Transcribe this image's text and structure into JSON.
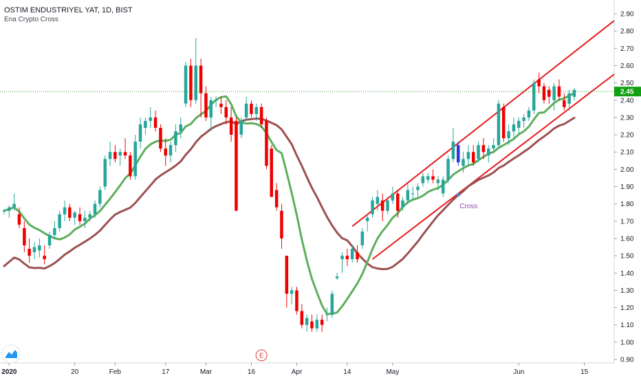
{
  "header": {
    "symbol_line": "OSTIM ENDUSTRIYEL YAT, 1D, BIST",
    "indicator_name": "Ena Crypto Cross"
  },
  "chart_data": {
    "type": "candlestick",
    "title": "OSTIM ENDUSTRIYEL YAT, 1D, BIST",
    "ylim": [
      0.9,
      2.9
    ],
    "y_ticks": [
      "0.90",
      "1.00",
      "1.10",
      "1.20",
      "1.30",
      "1.40",
      "1.50",
      "1.60",
      "1.70",
      "1.80",
      "1.90",
      "2.00",
      "2.10",
      "2.20",
      "2.30",
      "2.40",
      "2.50",
      "2.60",
      "2.70",
      "2.80",
      "2.90"
    ],
    "x_ticks": [
      "2020",
      "20",
      "Feb",
      "17",
      "Mar",
      "16",
      "Apr",
      "14",
      "May",
      "Jun",
      "15"
    ],
    "last_price": "2.45",
    "colors": {
      "up": "#26a69a",
      "down": "#ef0000",
      "fast_ma": "#5cae5c",
      "slow_ma": "#9c5050",
      "channel": "#e8191c",
      "price_line": "#2e9a2e",
      "price_tag": "#12a012",
      "signal_up": "#2196f3",
      "signal_bar": "#3333dd",
      "cross_label": "#8e44ad",
      "event_marker": "#e04040"
    },
    "candles": [
      [
        1.76,
        1.77,
        1.74,
        1.76
      ],
      [
        1.76,
        1.79,
        1.72,
        1.78
      ],
      [
        1.78,
        1.86,
        1.76,
        1.8
      ],
      [
        1.74,
        1.78,
        1.66,
        1.68
      ],
      [
        1.66,
        1.7,
        1.52,
        1.56
      ],
      [
        1.54,
        1.6,
        1.46,
        1.5
      ],
      [
        1.52,
        1.58,
        1.48,
        1.55
      ],
      [
        1.53,
        1.6,
        1.49,
        1.56
      ],
      [
        1.5,
        1.56,
        1.45,
        1.48
      ],
      [
        1.56,
        1.64,
        1.54,
        1.62
      ],
      [
        1.62,
        1.7,
        1.6,
        1.66
      ],
      [
        1.66,
        1.76,
        1.64,
        1.74
      ],
      [
        1.74,
        1.82,
        1.7,
        1.78
      ],
      [
        1.78,
        1.8,
        1.7,
        1.72
      ],
      [
        1.72,
        1.76,
        1.68,
        1.75
      ],
      [
        1.74,
        1.78,
        1.68,
        1.7
      ],
      [
        1.7,
        1.76,
        1.66,
        1.72
      ],
      [
        1.72,
        1.76,
        1.7,
        1.74
      ],
      [
        1.74,
        1.82,
        1.72,
        1.8
      ],
      [
        1.8,
        1.9,
        1.78,
        1.88
      ],
      [
        1.9,
        2.08,
        1.88,
        2.06
      ],
      [
        2.06,
        2.16,
        2.02,
        2.1
      ],
      [
        2.1,
        2.14,
        2.04,
        2.06
      ],
      [
        2.08,
        2.12,
        2.02,
        2.1
      ],
      [
        2.1,
        2.18,
        2.06,
        2.08
      ],
      [
        2.08,
        2.1,
        1.94,
        1.96
      ],
      [
        1.96,
        2.2,
        1.94,
        2.16
      ],
      [
        2.16,
        2.3,
        2.12,
        2.26
      ],
      [
        2.24,
        2.3,
        2.2,
        2.28
      ],
      [
        2.28,
        2.36,
        2.24,
        2.3
      ],
      [
        2.3,
        2.34,
        2.22,
        2.24
      ],
      [
        2.24,
        2.26,
        2.1,
        2.12
      ],
      [
        2.12,
        2.18,
        2.02,
        2.08
      ],
      [
        2.08,
        2.16,
        2.04,
        2.14
      ],
      [
        2.14,
        2.26,
        2.1,
        2.22
      ],
      [
        2.22,
        2.3,
        2.18,
        2.26
      ],
      [
        2.38,
        2.62,
        2.36,
        2.6
      ],
      [
        2.6,
        2.64,
        2.36,
        2.4
      ],
      [
        2.4,
        2.76,
        2.38,
        2.6
      ],
      [
        2.6,
        2.64,
        2.3,
        2.44
      ],
      [
        2.44,
        2.48,
        2.28,
        2.3
      ],
      [
        2.3,
        2.42,
        2.22,
        2.4
      ],
      [
        2.4,
        2.42,
        2.36,
        2.4
      ],
      [
        2.38,
        2.42,
        2.32,
        2.36
      ],
      [
        2.36,
        2.4,
        2.26,
        2.3
      ],
      [
        2.3,
        2.36,
        2.16,
        2.2
      ],
      [
        2.28,
        2.3,
        1.76,
        1.76
      ],
      [
        2.2,
        2.3,
        2.18,
        2.28
      ],
      [
        2.3,
        2.42,
        2.28,
        2.38
      ],
      [
        2.38,
        2.4,
        2.3,
        2.32
      ],
      [
        2.32,
        2.38,
        2.28,
        2.36
      ],
      [
        2.36,
        2.38,
        2.24,
        2.26
      ],
      [
        2.28,
        2.3,
        2.0,
        2.02
      ],
      [
        2.12,
        2.14,
        1.84,
        1.84
      ],
      [
        1.88,
        1.92,
        1.76,
        1.78
      ],
      [
        1.76,
        1.8,
        1.54,
        1.6
      ],
      [
        1.5,
        1.5,
        1.2,
        1.28
      ],
      [
        1.28,
        1.32,
        1.22,
        1.3
      ],
      [
        1.3,
        1.32,
        1.16,
        1.18
      ],
      [
        1.18,
        1.22,
        1.08,
        1.1
      ],
      [
        1.1,
        1.16,
        1.06,
        1.14
      ],
      [
        1.12,
        1.16,
        1.06,
        1.08
      ],
      [
        1.08,
        1.16,
        1.06,
        1.13
      ],
      [
        1.13,
        1.16,
        1.06,
        1.1
      ],
      [
        1.16,
        1.2,
        1.12,
        1.16
      ],
      [
        1.16,
        1.3,
        1.14,
        1.28
      ],
      [
        1.37,
        1.4,
        1.36,
        1.38
      ],
      [
        1.48,
        1.52,
        1.4,
        1.5
      ],
      [
        1.5,
        1.54,
        1.44,
        1.48
      ],
      [
        1.48,
        1.56,
        1.46,
        1.54
      ],
      [
        1.52,
        1.56,
        1.46,
        1.48
      ],
      [
        1.56,
        1.66,
        1.54,
        1.64
      ],
      [
        1.7,
        1.74,
        1.64,
        1.72
      ],
      [
        1.74,
        1.84,
        1.72,
        1.82
      ],
      [
        1.8,
        1.88,
        1.76,
        1.84
      ],
      [
        1.82,
        1.86,
        1.7,
        1.76
      ],
      [
        1.76,
        1.84,
        1.74,
        1.82
      ],
      [
        1.82,
        1.9,
        1.8,
        1.86
      ],
      [
        1.86,
        1.88,
        1.72,
        1.76
      ],
      [
        1.78,
        1.84,
        1.76,
        1.82
      ],
      [
        1.82,
        1.92,
        1.8,
        1.88
      ],
      [
        1.86,
        1.9,
        1.82,
        1.86
      ],
      [
        1.88,
        1.92,
        1.84,
        1.9
      ],
      [
        1.92,
        1.98,
        1.9,
        1.96
      ],
      [
        1.94,
        1.98,
        1.92,
        1.96
      ],
      [
        1.96,
        2.0,
        1.92,
        1.94
      ],
      [
        1.92,
        1.96,
        1.88,
        1.94
      ],
      [
        1.86,
        1.96,
        1.84,
        1.94
      ],
      [
        1.94,
        2.08,
        1.92,
        2.06
      ],
      [
        2.06,
        2.24,
        2.04,
        2.16
      ],
      [
        2.14,
        2.16,
        2.02,
        2.04
      ],
      [
        2.02,
        2.1,
        1.98,
        2.06
      ],
      [
        2.06,
        2.14,
        2.02,
        2.1
      ],
      [
        2.1,
        2.14,
        2.02,
        2.04
      ],
      [
        2.06,
        2.16,
        2.04,
        2.14
      ],
      [
        2.14,
        2.18,
        2.06,
        2.1
      ],
      [
        2.08,
        2.14,
        2.04,
        2.12
      ],
      [
        2.12,
        2.18,
        2.1,
        2.14
      ],
      [
        2.14,
        2.4,
        2.12,
        2.38
      ],
      [
        2.36,
        2.38,
        2.16,
        2.18
      ],
      [
        2.18,
        2.26,
        2.14,
        2.22
      ],
      [
        2.22,
        2.3,
        2.18,
        2.26
      ],
      [
        2.24,
        2.3,
        2.2,
        2.28
      ],
      [
        2.28,
        2.32,
        2.24,
        2.3
      ],
      [
        2.3,
        2.36,
        2.28,
        2.34
      ],
      [
        2.34,
        2.52,
        2.32,
        2.5
      ],
      [
        2.52,
        2.56,
        2.44,
        2.48
      ],
      [
        2.48,
        2.5,
        2.38,
        2.4
      ],
      [
        2.46,
        2.48,
        2.38,
        2.42
      ],
      [
        2.4,
        2.5,
        2.34,
        2.48
      ],
      [
        2.48,
        2.52,
        2.4,
        2.42
      ],
      [
        2.4,
        2.44,
        2.34,
        2.36
      ],
      [
        2.38,
        2.46,
        2.34,
        2.44
      ],
      [
        2.42,
        2.47,
        2.4,
        2.46
      ]
    ],
    "fast_ma": [
      [
        1.62,
        1.7
      ],
      [
        1.76,
        1.72
      ],
      [
        1.79,
        1.72
      ],
      [
        1.73,
        1.7
      ],
      [
        1.68,
        1.69
      ],
      [
        1.64,
        1.68
      ],
      [
        1.6,
        1.69
      ],
      [
        1.56,
        1.7
      ],
      [
        1.56,
        1.72
      ],
      [
        1.54,
        1.76
      ],
      [
        1.54,
        1.82
      ],
      [
        1.52,
        1.9
      ],
      [
        1.5,
        1.96
      ],
      [
        1.47,
        2.04
      ],
      [
        1.43,
        2.1
      ],
      [
        1.38,
        2.17
      ],
      [
        1.37,
        2.25
      ],
      [
        1.38,
        2.3
      ],
      [
        1.4,
        2.34
      ],
      [
        1.44,
        2.36
      ],
      [
        1.49,
        2.4
      ],
      [
        1.56,
        2.43
      ],
      [
        1.64,
        2.47
      ],
      [
        1.73,
        2.5
      ],
      [
        1.81,
        2.53
      ]
    ],
    "slow_ma": [
      [
        1.4,
        1.46
      ],
      [
        1.41,
        1.48
      ],
      [
        1.43,
        1.5
      ],
      [
        1.46,
        1.54
      ],
      [
        1.5,
        1.6
      ],
      [
        1.56,
        1.64
      ],
      [
        1.63,
        1.68
      ],
      [
        1.7,
        1.72
      ],
      [
        1.8,
        1.78
      ],
      [
        1.88,
        1.86
      ],
      [
        1.93,
        1.94
      ],
      [
        1.97,
        1.99
      ],
      [
        2.02,
        2.04
      ],
      [
        2.05,
        2.05
      ],
      [
        2.03,
        2.03
      ],
      [
        1.99,
        1.98
      ],
      [
        1.95,
        1.93
      ],
      [
        1.92,
        1.9
      ],
      [
        1.88,
        1.86
      ],
      [
        1.84,
        1.83
      ],
      [
        1.81,
        1.8
      ],
      [
        1.79,
        1.77
      ],
      [
        1.75,
        1.73
      ],
      [
        1.72,
        1.71
      ],
      [
        1.72,
        1.74
      ],
      [
        1.8,
        1.88
      ],
      [
        1.98,
        2.04
      ]
    ],
    "channel_upper": [
      [
        1.67,
        2.86
      ]
    ],
    "channel_lower": [
      [
        1.48,
        2.55
      ]
    ],
    "annotations": {
      "cross_label": "Cross",
      "event_marker": "E",
      "signal_arrow": "▲"
    }
  }
}
